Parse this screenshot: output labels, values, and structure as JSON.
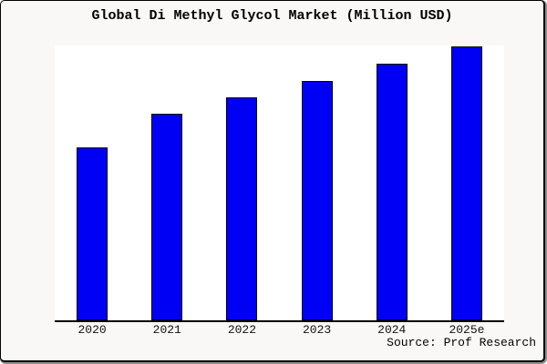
{
  "title": "Global Di Methyl Glycol Market (Million USD)",
  "source": "Source: Prof Research",
  "colors": {
    "bar": "#0000F5",
    "bar_border": "#000000",
    "figure_bg": "#F9F8F6",
    "plot_bg": "#FFFFFF",
    "axis": "#000000"
  },
  "chart_data": {
    "type": "bar",
    "title": "Global Di Methyl Glycol Market (Million USD)",
    "categories": [
      "2020",
      "2021",
      "2022",
      "2023",
      "2024",
      "2025e"
    ],
    "values": [
      62.9,
      75.2,
      81.1,
      87.1,
      93.4,
      99.7
    ],
    "value_note": "No y-axis ticks or data labels shown in chart; values are relative units estimated from pixel bar heights, normalized so 2025e ≈ 100.",
    "xlabel": "",
    "ylabel": "",
    "ylim": [
      0,
      100
    ],
    "grid": false,
    "legend": null,
    "bar_color_name": "blue",
    "source_annotation": "Source: Prof Research"
  }
}
